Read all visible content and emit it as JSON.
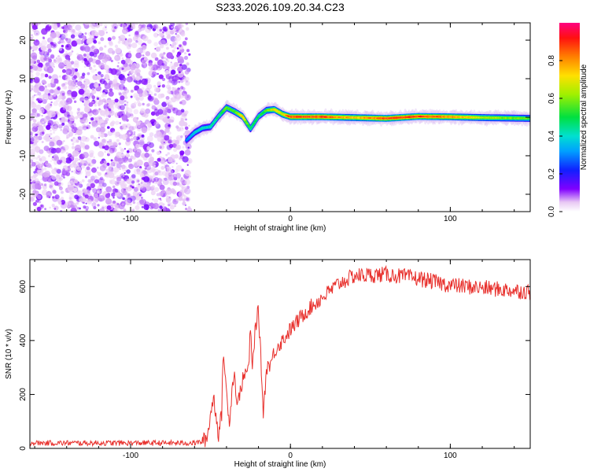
{
  "title": "S233.2026.109.20.34.C23",
  "chart_data": [
    {
      "type": "heatmap",
      "name": "spectrogram",
      "xlabel": "Height of straight line (km)",
      "ylabel": "Frequency (Hz)",
      "xlim": [
        -163,
        150
      ],
      "ylim": [
        -24.5,
        24.5
      ],
      "xticks": [
        -100,
        0,
        100
      ],
      "yticks": [
        -20,
        -10,
        0,
        10,
        20
      ],
      "xtick_labels": [
        "-100",
        "0",
        "100"
      ],
      "ytick_labels": [
        "-20",
        "-10",
        "0",
        "10",
        "20"
      ],
      "noise_region_x": [
        -163,
        -65
      ],
      "signal_track": {
        "x": [
          -65,
          -60,
          -55,
          -50,
          -45,
          -40,
          -35,
          -30,
          -25,
          -20,
          -15,
          -10,
          -5,
          0,
          10,
          20,
          40,
          60,
          80,
          100,
          120,
          150
        ],
        "freq": [
          -6,
          -4,
          -2.8,
          -2.5,
          0.2,
          2.5,
          1.5,
          0.2,
          -3.0,
          0.2,
          1.8,
          2.0,
          0.8,
          0.1,
          0.1,
          0.1,
          -0.1,
          -0.3,
          0.2,
          0.1,
          -0.1,
          -0.3
        ],
        "amplitude": [
          0.3,
          0.4,
          0.45,
          0.45,
          0.5,
          0.6,
          0.6,
          0.75,
          0.5,
          0.5,
          0.6,
          0.8,
          0.75,
          0.95,
          0.95,
          0.95,
          0.8,
          0.95,
          0.95,
          0.9,
          0.7,
          0.6
        ]
      }
    },
    {
      "type": "line",
      "name": "snr",
      "xlabel": "Height of straight line (km)",
      "ylabel": "SNR (10 * v/v)",
      "xlim": [
        -163,
        150
      ],
      "ylim": [
        0,
        700
      ],
      "xticks": [
        -100,
        0,
        100
      ],
      "yticks": [
        0,
        200,
        400,
        600
      ],
      "xtick_labels": [
        "-100",
        "0",
        "100"
      ],
      "ytick_labels": [
        "0",
        "200",
        "400",
        "600"
      ],
      "color": "#e8302c",
      "x": [
        -163,
        -60,
        -55,
        -52,
        -50,
        -48,
        -46,
        -45,
        -43,
        -42,
        -40,
        -38,
        -36,
        -35,
        -33,
        -32,
        -30,
        -28,
        -26,
        -25,
        -24,
        -22,
        -20,
        -18,
        -17,
        -16,
        -15,
        -12,
        -10,
        -8,
        -5,
        0,
        10,
        20,
        30,
        40,
        60,
        80,
        100,
        110,
        120,
        130,
        140,
        150
      ],
      "y": [
        20,
        20,
        25,
        40,
        130,
        190,
        100,
        50,
        130,
        375,
        200,
        100,
        260,
        270,
        150,
        200,
        250,
        280,
        300,
        460,
        280,
        450,
        510,
        270,
        130,
        210,
        300,
        320,
        360,
        380,
        400,
        440,
        510,
        560,
        610,
        640,
        645,
        630,
        605,
        600,
        595,
        590,
        585,
        580
      ],
      "noise_amplitude": {
        "low_x_max": -55,
        "low": 10,
        "high": 30
      }
    }
  ],
  "colorbar": {
    "label": "Normalized spectral amplitude",
    "ticks": [
      "0.0",
      "0.2",
      "0.4",
      "0.6",
      "0.8"
    ],
    "tick_values": [
      0.0,
      0.2,
      0.4,
      0.6,
      0.8
    ],
    "range": [
      0,
      1
    ]
  }
}
